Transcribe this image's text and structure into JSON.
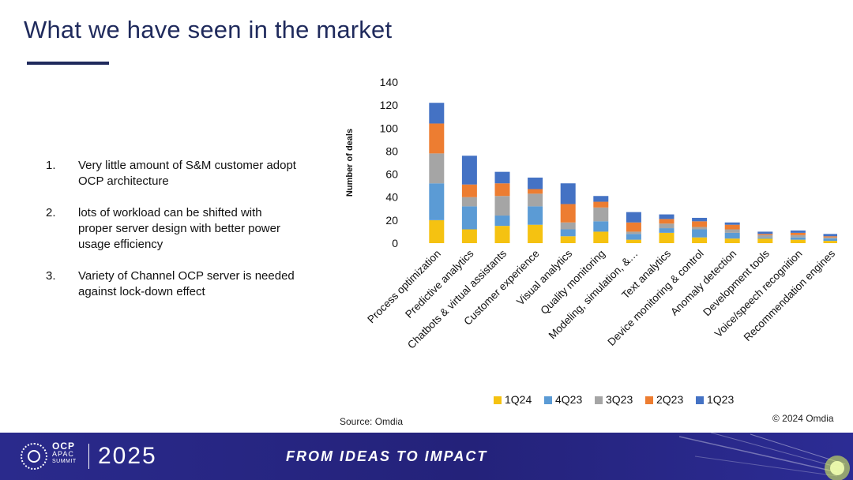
{
  "slide": {
    "title": "What we have seen in the market",
    "bullets": [
      {
        "num": "1.",
        "text": "Very little amount of S&M customer adopt OCP architecture"
      },
      {
        "num": "2.",
        "text": "lots of workload can be shifted with proper server design with better power usage efficiency"
      },
      {
        "num": "3.",
        "text": "Variety of Channel OCP server is needed against lock-down effect"
      }
    ],
    "source": "Source: Omdia",
    "copyright": "© 2024 Omdia"
  },
  "footer": {
    "logo_line1": "OCP",
    "logo_line2": "APAC",
    "logo_line3": "SUMMIT",
    "year": "2025",
    "tagline": "FROM IDEAS TO IMPACT"
  },
  "colors": {
    "1Q24": "#f5c211",
    "4Q23": "#5b9bd5",
    "3Q23": "#a5a5a5",
    "2Q23": "#ed7d31",
    "1Q23": "#4472c4",
    "title": "#1f2a5c",
    "footer_bg": "#2a2a8c"
  },
  "chart_data": {
    "type": "bar",
    "stacked": true,
    "title": "",
    "xlabel": "",
    "ylabel": "Number of deals",
    "ylim": [
      0,
      140
    ],
    "yticks": [
      0,
      20,
      40,
      60,
      80,
      100,
      120,
      140
    ],
    "grid": false,
    "legend_position": "bottom",
    "categories": [
      "Process optimization",
      "Predictive analytics",
      "Chatbots & virtual assistants",
      "Customer experience",
      "Visual analytics",
      "Quality monitoring",
      "Modeling, simulation, &…",
      "Text analytics",
      "Device monitoring & control",
      "Anomaly detection",
      "Development tools",
      "Voice/speech recognition",
      "Recommendation engines"
    ],
    "series": [
      {
        "name": "1Q24",
        "values": [
          20,
          12,
          15,
          16,
          6,
          10,
          3,
          9,
          5,
          4,
          4,
          3,
          2
        ]
      },
      {
        "name": "4Q23",
        "values": [
          32,
          20,
          9,
          16,
          6,
          9,
          5,
          4,
          7,
          5,
          1,
          2,
          2
        ]
      },
      {
        "name": "3Q23",
        "values": [
          26,
          8,
          17,
          11,
          6,
          12,
          2,
          4,
          2,
          3,
          2,
          2,
          1
        ]
      },
      {
        "name": "2Q23",
        "values": [
          26,
          11,
          11,
          4,
          16,
          5,
          8,
          4,
          5,
          4,
          1,
          2,
          1
        ]
      },
      {
        "name": "1Q23",
        "values": [
          18,
          25,
          10,
          10,
          18,
          5,
          9,
          4,
          3,
          2,
          2,
          2,
          2
        ]
      }
    ]
  }
}
